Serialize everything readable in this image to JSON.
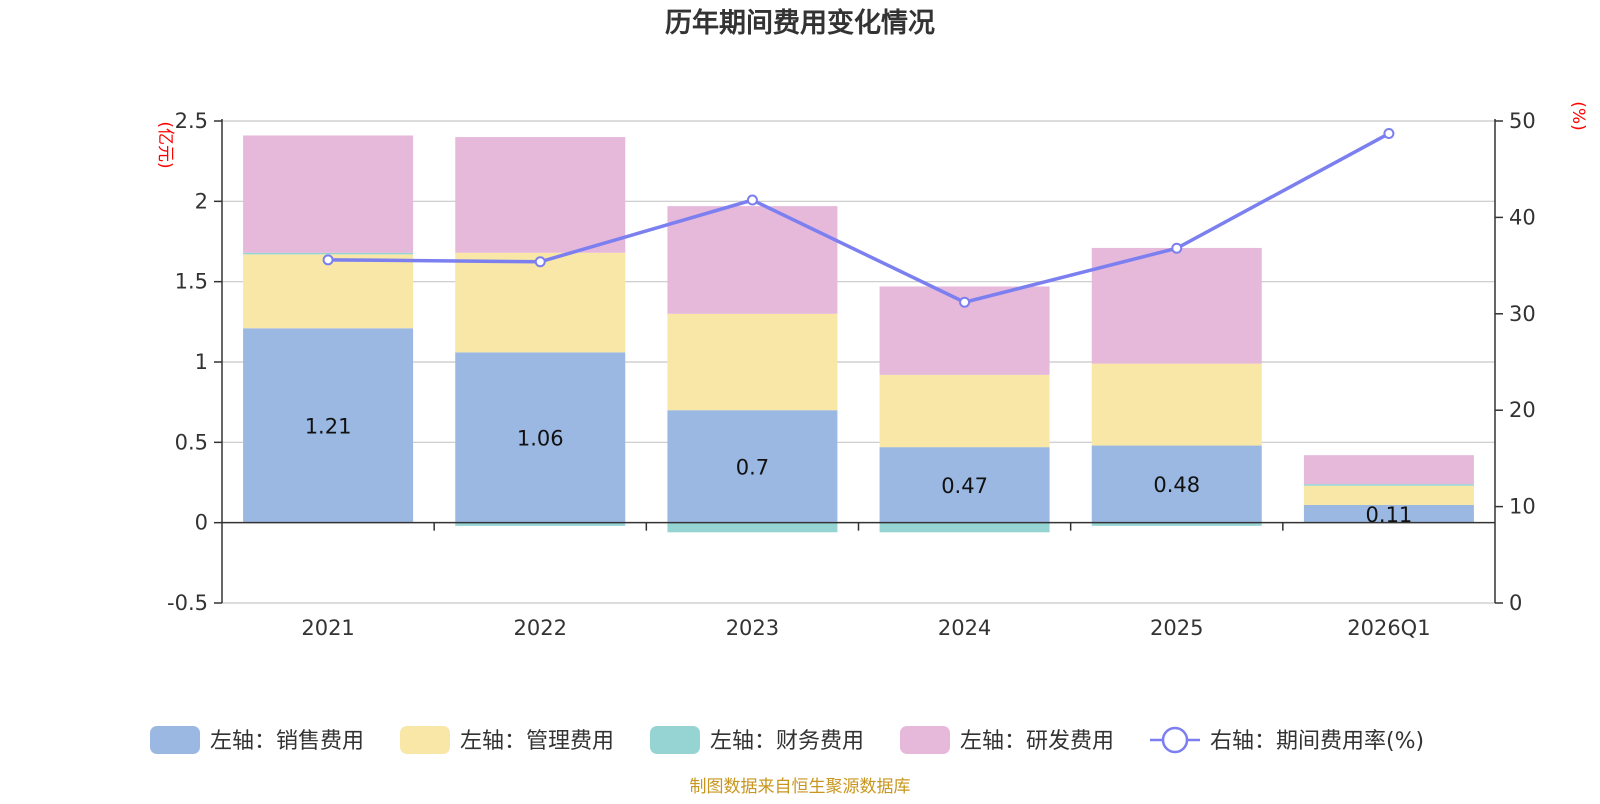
{
  "chart_data": {
    "type": "bar",
    "title": "历年期间费用变化情况",
    "categories": [
      "2021",
      "2022",
      "2023",
      "2024",
      "2025",
      "2026Q1"
    ],
    "stacked": true,
    "series": [
      {
        "name": "左轴：销售费用",
        "axis": "left",
        "type": "bar",
        "color": "#9bb8e2",
        "values": [
          1.21,
          1.06,
          0.7,
          0.47,
          0.48,
          0.11
        ],
        "labels": [
          "1.21",
          "1.06",
          "0.7",
          "0.47",
          "0.48",
          "0.11"
        ]
      },
      {
        "name": "左轴：管理费用",
        "axis": "left",
        "type": "bar",
        "color": "#f8e7a6",
        "values": [
          0.46,
          0.62,
          0.6,
          0.45,
          0.51,
          0.12
        ]
      },
      {
        "name": "左轴：财务费用",
        "axis": "left",
        "type": "bar",
        "color": "#96d4d4",
        "values": [
          0.01,
          -0.02,
          -0.06,
          -0.06,
          -0.02,
          0.01
        ]
      },
      {
        "name": "左轴：研发费用",
        "axis": "left",
        "type": "bar",
        "color": "#e6b8da",
        "values": [
          0.73,
          0.72,
          0.67,
          0.55,
          0.72,
          0.18
        ]
      },
      {
        "name": "右轴：期间费用率(%)",
        "axis": "right",
        "type": "line",
        "color": "#7b7ff0",
        "values": [
          35.6,
          35.4,
          41.8,
          31.2,
          36.8,
          48.7
        ]
      }
    ],
    "left_axis": {
      "unit": "(亿元)",
      "ylim": [
        -0.5,
        2.5
      ],
      "ticks": [
        -0.5,
        0,
        0.5,
        1,
        1.5,
        2,
        2.5
      ],
      "tick_labels": [
        "-0.5",
        "0",
        "0.5",
        "1",
        "1.5",
        "2",
        "2.5"
      ]
    },
    "right_axis": {
      "unit": "(%)",
      "ylim": [
        0,
        50
      ],
      "ticks": [
        0,
        10,
        20,
        30,
        40,
        50
      ],
      "tick_labels": [
        "0",
        "10",
        "20",
        "30",
        "40",
        "50"
      ]
    },
    "legend_position": "bottom",
    "grid": true,
    "source_text": "制图数据来自恒生聚源数据库"
  }
}
